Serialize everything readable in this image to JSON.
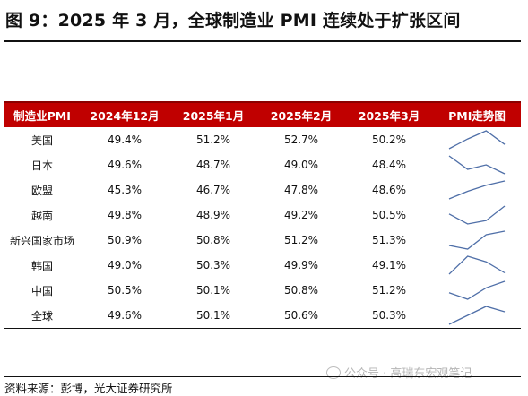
{
  "title": "图 9：2025 年 3 月，全球制造业 PMI 连续处于扩张区间",
  "table": {
    "headers": [
      "制造业PMI",
      "2024年12月",
      "2025年1月",
      "2025年2月",
      "2025年3月",
      "PMI走势图"
    ],
    "rows": [
      {
        "name": "美国",
        "values": [
          "49.4%",
          "51.2%",
          "52.7%",
          "50.2%"
        ],
        "series": [
          49.4,
          51.2,
          52.7,
          50.2
        ]
      },
      {
        "name": "日本",
        "values": [
          "49.6%",
          "48.7%",
          "49.0%",
          "48.4%"
        ],
        "series": [
          49.6,
          48.7,
          49.0,
          48.4
        ]
      },
      {
        "name": "欧盟",
        "values": [
          "45.3%",
          "46.7%",
          "47.8%",
          "48.6%"
        ],
        "series": [
          45.3,
          46.7,
          47.8,
          48.6
        ]
      },
      {
        "name": "越南",
        "values": [
          "49.8%",
          "48.9%",
          "49.2%",
          "50.5%"
        ],
        "series": [
          49.8,
          48.9,
          49.2,
          50.5
        ]
      },
      {
        "name": "新兴国家市场",
        "values": [
          "50.9%",
          "50.8%",
          "51.2%",
          "51.3%"
        ],
        "series": [
          50.9,
          50.8,
          51.2,
          51.3
        ]
      },
      {
        "name": "韩国",
        "values": [
          "49.0%",
          "50.3%",
          "49.9%",
          "49.1%"
        ],
        "series": [
          49.0,
          50.3,
          49.9,
          49.1
        ]
      },
      {
        "name": "中国",
        "values": [
          "50.5%",
          "50.1%",
          "50.8%",
          "51.2%"
        ],
        "series": [
          50.5,
          50.1,
          50.8,
          51.2
        ]
      },
      {
        "name": "全球",
        "values": [
          "49.6%",
          "50.1%",
          "50.6%",
          "50.3%"
        ],
        "series": [
          49.6,
          50.1,
          50.6,
          50.3
        ]
      }
    ]
  },
  "sparkline_color": "#4f6fa8",
  "header_color": "#c00000",
  "source": "资料来源：彭博，光大证券研究所",
  "watermark": "公众号 · 高瑞东宏观笔记"
}
